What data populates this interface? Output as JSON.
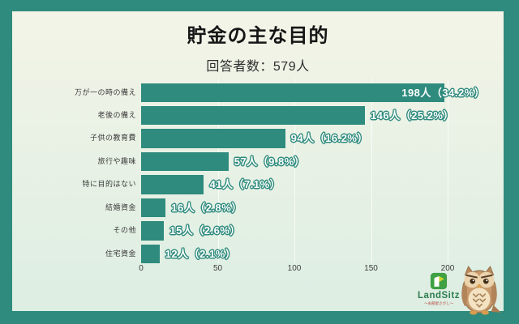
{
  "page": {
    "frame_color": "#2e8b7d",
    "card_bg_top": "#f3f4e7",
    "card_bg_bottom": "#ddeee3"
  },
  "header": {
    "title": "貯金の主な目的",
    "subtitle": "回答者数：579人"
  },
  "chart_data": {
    "type": "bar",
    "orientation": "horizontal",
    "title": "貯金の主な目的",
    "respondents_note": "回答者数：579人",
    "total_respondents": 579,
    "categories": [
      "万が一の時の備え",
      "老後の備え",
      "子供の教育費",
      "旅行や趣味",
      "特に目的はない",
      "結婚資金",
      "その他",
      "住宅資金"
    ],
    "values": [
      198,
      146,
      94,
      57,
      41,
      16,
      15,
      12
    ],
    "percents": [
      34.2,
      25.2,
      16.2,
      9.8,
      7.1,
      2.8,
      2.6,
      2.1
    ],
    "value_labels": [
      "198人（34.2%）",
      "146人（25.2%）",
      "94人（16.2%）",
      "57人（9.8%）",
      "41人（7.1%）",
      "16人（2.8%）",
      "15人（2.6%）",
      "12人（2.1%）"
    ],
    "xlim": [
      0,
      200
    ],
    "x_ticks": [
      0,
      50,
      100,
      150,
      200
    ],
    "xlabel": "",
    "ylabel": "",
    "bar_color": "#2e8b7d",
    "grid": true,
    "legend": false
  },
  "branding": {
    "logo_text": "LandSitz",
    "logo_tagline": "〜お部屋さがし〜",
    "logo_text_color": "#2e7d4f",
    "tagline_color": "#b5413a"
  }
}
